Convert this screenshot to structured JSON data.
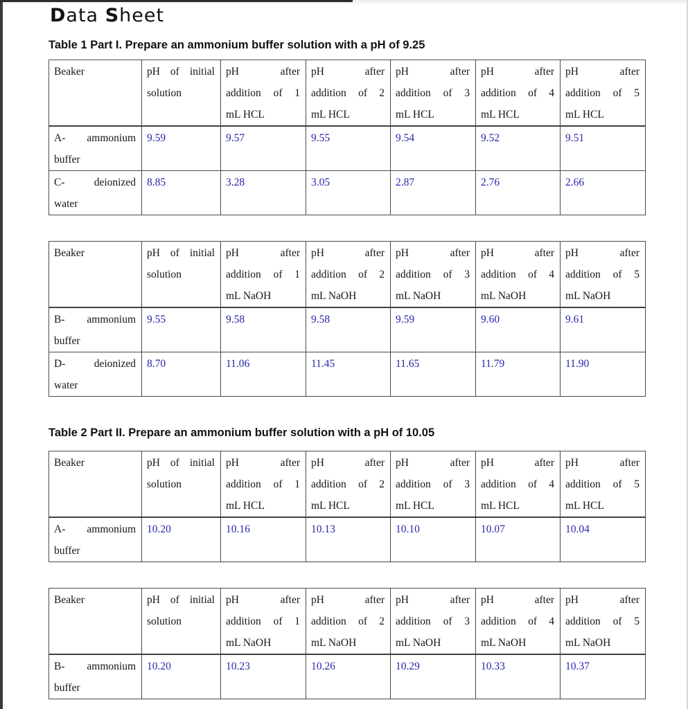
{
  "page": {
    "title_segments": [
      {
        "text": "D",
        "bold": true
      },
      {
        "text": "ata ",
        "bold": false
      },
      {
        "text": "S",
        "bold": true
      },
      {
        "text": "heet",
        "bold": false
      }
    ]
  },
  "colors": {
    "value_blue": "#2626a8",
    "table_border": "#4a4a4a",
    "text": "#151515"
  },
  "sections": [
    {
      "caption": "Table 1 Part I.  Prepare an ammonium buffer solution with a pH of 9.25",
      "tables": [
        {
          "name": "table1-hcl",
          "header": [
            [
              [
                "Beaker"
              ]
            ],
            [
              [
                "pH",
                "of",
                "initial"
              ],
              [
                "solution"
              ]
            ],
            [
              [
                "pH",
                "after"
              ],
              [
                "addition",
                "of",
                "1"
              ],
              [
                "mL HCL"
              ]
            ],
            [
              [
                "pH",
                "after"
              ],
              [
                "addition",
                "of",
                "2"
              ],
              [
                "mL HCL"
              ]
            ],
            [
              [
                "pH",
                "after"
              ],
              [
                "addition",
                "of",
                "3"
              ],
              [
                "mL HCL"
              ]
            ],
            [
              [
                "pH",
                "after"
              ],
              [
                "addition",
                "of",
                "4"
              ],
              [
                "mL HCL"
              ]
            ],
            [
              [
                "pH",
                "after"
              ],
              [
                "addition",
                "of",
                "5"
              ],
              [
                "mL HCL"
              ]
            ]
          ],
          "rows": [
            {
              "label": [
                [
                  "A-",
                  "ammonium"
                ],
                [
                  "buffer"
                ]
              ],
              "values": [
                "9.59",
                "9.57",
                "9.55",
                "9.54",
                "9.52",
                "9.51"
              ]
            },
            {
              "label": [
                [
                  "C-",
                  "deionized"
                ],
                [
                  "water"
                ]
              ],
              "values": [
                "8.85",
                "3.28",
                "3.05",
                "2.87",
                "2.76",
                "2.66"
              ]
            }
          ]
        },
        {
          "name": "table1-naoh",
          "header": [
            [
              [
                "Beaker"
              ]
            ],
            [
              [
                "pH",
                "of",
                "initial"
              ],
              [
                "solution"
              ]
            ],
            [
              [
                "pH",
                "after"
              ],
              [
                "addition",
                "of",
                "1"
              ],
              [
                "mL NaOH"
              ]
            ],
            [
              [
                "pH",
                "after"
              ],
              [
                "addition",
                "of",
                "2"
              ],
              [
                "mL NaOH"
              ]
            ],
            [
              [
                "pH",
                "after"
              ],
              [
                "addition",
                "of",
                "3"
              ],
              [
                "mL NaOH"
              ]
            ],
            [
              [
                "pH",
                "after"
              ],
              [
                "addition",
                "of",
                "4"
              ],
              [
                "mL NaOH"
              ]
            ],
            [
              [
                "pH",
                "after"
              ],
              [
                "addition",
                "of",
                "5"
              ],
              [
                "mL NaOH"
              ]
            ]
          ],
          "rows": [
            {
              "label": [
                [
                  "B-",
                  "ammonium"
                ],
                [
                  "buffer"
                ]
              ],
              "values": [
                "9.55",
                "9.58",
                "9.58",
                "9.59",
                "9.60",
                "9.61"
              ]
            },
            {
              "label": [
                [
                  "D-",
                  "deionized"
                ],
                [
                  "water"
                ]
              ],
              "values": [
                "8.70",
                "11.06",
                "11.45",
                "11.65",
                "11.79",
                "11.90"
              ]
            }
          ]
        }
      ]
    },
    {
      "caption": "Table 2 Part II.  Prepare an ammonium buffer solution with a pH of 10.05",
      "tables": [
        {
          "name": "table2-hcl",
          "header": [
            [
              [
                "Beaker"
              ]
            ],
            [
              [
                "pH",
                "of",
                "initial"
              ],
              [
                "solution"
              ]
            ],
            [
              [
                "pH",
                "after"
              ],
              [
                "addition",
                "of",
                "1"
              ],
              [
                "mL HCL"
              ]
            ],
            [
              [
                "pH",
                "after"
              ],
              [
                "addition",
                "of",
                "2"
              ],
              [
                "mL HCL"
              ]
            ],
            [
              [
                "pH",
                "after"
              ],
              [
                "addition",
                "of",
                "3"
              ],
              [
                "mL HCL"
              ]
            ],
            [
              [
                "pH",
                "after"
              ],
              [
                "addition",
                "of",
                "4"
              ],
              [
                "mL HCL"
              ]
            ],
            [
              [
                "pH",
                "after"
              ],
              [
                "addition",
                "of",
                "5"
              ],
              [
                "mL HCL"
              ]
            ]
          ],
          "rows": [
            {
              "label": [
                [
                  "A-",
                  "ammonium"
                ],
                [
                  "buffer"
                ]
              ],
              "values": [
                "10.20",
                "10.16",
                "10.13",
                "10.10",
                "10.07",
                "10.04"
              ]
            }
          ]
        },
        {
          "name": "table2-naoh",
          "header": [
            [
              [
                "Beaker"
              ]
            ],
            [
              [
                "pH",
                "of",
                "initial"
              ],
              [
                "solution"
              ]
            ],
            [
              [
                "pH",
                "after"
              ],
              [
                "addition",
                "of",
                "1"
              ],
              [
                "mL NaOH"
              ]
            ],
            [
              [
                "pH",
                "after"
              ],
              [
                "addition",
                "of",
                "2"
              ],
              [
                "mL NaOH"
              ]
            ],
            [
              [
                "pH",
                "after"
              ],
              [
                "addition",
                "of",
                "3"
              ],
              [
                "mL NaOH"
              ]
            ],
            [
              [
                "pH",
                "after"
              ],
              [
                "addition",
                "of",
                "4"
              ],
              [
                "mL NaOH"
              ]
            ],
            [
              [
                "pH",
                "after"
              ],
              [
                "addition",
                "of",
                "5"
              ],
              [
                "mL NaOH"
              ]
            ]
          ],
          "rows": [
            {
              "label": [
                [
                  "B-",
                  "ammonium"
                ],
                [
                  "buffer"
                ]
              ],
              "values": [
                "10.20",
                "10.23",
                "10.26",
                "10.29",
                "10.33",
                "10.37"
              ]
            }
          ]
        }
      ]
    }
  ]
}
